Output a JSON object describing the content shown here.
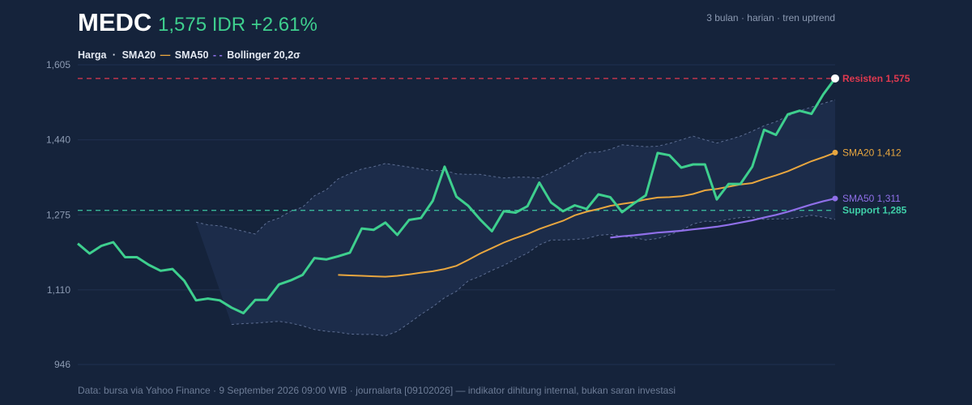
{
  "header": {
    "ticker": "MEDC",
    "price_text": "1,575 IDR +2.61%",
    "meta": "3 bulan · harian · tren uptrend"
  },
  "legend": {
    "price": "Harga",
    "sep": "·",
    "sma20": "SMA20",
    "sma50": "SMA50",
    "bollinger": "Bollinger 20,2σ"
  },
  "footer": "Data: bursa via Yahoo Finance · 9 September 2026 09:00 WIB · journalarta [09102026] — indikator dihitung internal, bukan saran investasi",
  "colors": {
    "price": "#3ecf8e",
    "sma20": "#e8a63f",
    "sma50": "#8f6fe8",
    "resistance": "#e0394f",
    "support": "#3fcfa8",
    "band_fill": "#1d2e4c",
    "band_line": "#5d6e92",
    "grid": "#203150"
  },
  "chart_data": {
    "type": "line",
    "ylim": [
      946,
      1605
    ],
    "yticks": [
      946,
      1110,
      1275,
      1440,
      1605
    ],
    "ytick_labels": [
      "946",
      "1,110",
      "1,275",
      "1,440",
      "1,605"
    ],
    "grid": true,
    "series": [
      {
        "name": "Harga",
        "values": [
          1212,
          1190,
          1207,
          1215,
          1182,
          1182,
          1165,
          1152,
          1156,
          1130,
          1087,
          1091,
          1087,
          1071,
          1059,
          1088,
          1088,
          1122,
          1131,
          1143,
          1180,
          1177,
          1184,
          1192,
          1245,
          1242,
          1258,
          1231,
          1264,
          1268,
          1306,
          1381,
          1315,
          1295,
          1265,
          1239,
          1283,
          1280,
          1294,
          1346,
          1302,
          1283,
          1296,
          1288,
          1320,
          1314,
          1281,
          1300,
          1318,
          1411,
          1406,
          1379,
          1386,
          1386,
          1309,
          1343,
          1343,
          1381,
          1462,
          1451,
          1496,
          1504,
          1497,
          1540,
          1575
        ]
      },
      {
        "name": "SMA20",
        "values": [
          1143,
          1142,
          1141,
          1140,
          1139,
          1141,
          1144,
          1148,
          1151,
          1156,
          1163,
          1176,
          1190,
          1202,
          1214,
          1224,
          1233,
          1244,
          1253,
          1262,
          1274,
          1282,
          1288,
          1295,
          1299,
          1303,
          1309,
          1313,
          1314,
          1316,
          1321,
          1329,
          1332,
          1337,
          1342,
          1345,
          1354,
          1362,
          1371,
          1382,
          1393,
          1402,
          1412
        ]
      },
      {
        "name": "SMA50",
        "values": [
          1225,
          1228,
          1230,
          1233,
          1236,
          1238,
          1240,
          1243,
          1246,
          1249,
          1253,
          1258,
          1263,
          1269,
          1275,
          1282,
          1290,
          1298,
          1305,
          1311
        ]
      },
      {
        "name": "Bollinger 20,2σ upper",
        "values": [
          1259,
          1253,
          1251,
          1245,
          1239,
          1233,
          1259,
          1268,
          1283,
          1292,
          1317,
          1330,
          1354,
          1366,
          1376,
          1381,
          1388,
          1384,
          1380,
          1376,
          1372,
          1373,
          1365,
          1364,
          1364,
          1360,
          1356,
          1358,
          1358,
          1356,
          1368,
          1381,
          1396,
          1412,
          1413,
          1419,
          1429,
          1427,
          1425,
          1426,
          1432,
          1440,
          1448,
          1440,
          1433,
          1440,
          1448,
          1459,
          1471,
          1480,
          1492,
          1504,
          1512,
          1520,
          1528
        ]
      },
      {
        "name": "Bollinger 20,2σ lower",
        "values": [
          1034,
          1036,
          1037,
          1039,
          1041,
          1037,
          1031,
          1023,
          1019,
          1017,
          1013,
          1012,
          1012,
          1009,
          1019,
          1037,
          1056,
          1073,
          1093,
          1107,
          1130,
          1140,
          1153,
          1164,
          1178,
          1191,
          1209,
          1220,
          1220,
          1221,
          1223,
          1230,
          1232,
          1228,
          1225,
          1220,
          1223,
          1231,
          1241,
          1255,
          1261,
          1260,
          1265,
          1269,
          1270,
          1265,
          1266,
          1266,
          1270,
          1274,
          1270,
          1265
        ]
      }
    ],
    "levels": [
      {
        "name": "Resisten",
        "value": 1575,
        "label": "Resisten 1,575"
      },
      {
        "name": "Support",
        "value": 1285,
        "label": "Support 1,285"
      }
    ],
    "end_labels": {
      "sma20": "SMA20 1,412",
      "sma50": "SMA50 1,311"
    }
  }
}
